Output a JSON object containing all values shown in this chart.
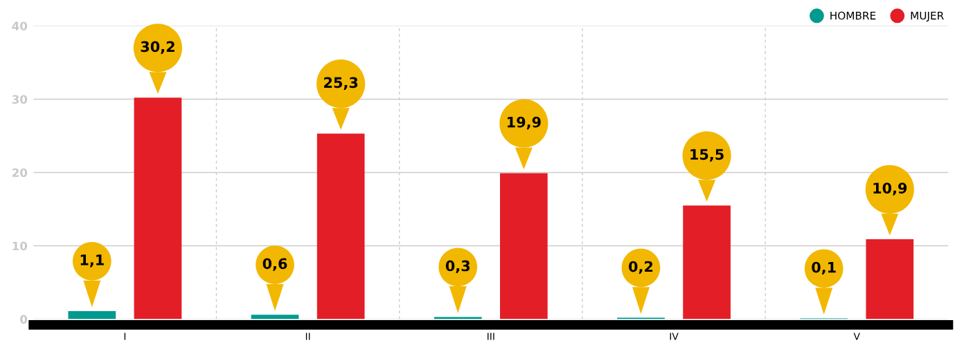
{
  "chart_data": {
    "type": "bar",
    "categories": [
      "I",
      "II",
      "III",
      "IV",
      "V"
    ],
    "series": [
      {
        "name": "HOMBRE",
        "color": "#009a8e",
        "values": [
          1.1,
          0.6,
          0.3,
          0.2,
          0.1
        ],
        "value_labels": [
          "1,1",
          "0,6",
          "0,3",
          "0,2",
          "0,1"
        ]
      },
      {
        "name": "MUJER",
        "color": "#e31e26",
        "values": [
          30.2,
          25.3,
          19.9,
          15.5,
          10.9
        ],
        "value_labels": [
          "30,2",
          "25,3",
          "19,9",
          "15,5",
          "10,9"
        ]
      }
    ],
    "ylim": [
      0,
      40
    ],
    "yticks": [
      0,
      10,
      20,
      30,
      40
    ],
    "grid": true,
    "legend": "top right"
  }
}
